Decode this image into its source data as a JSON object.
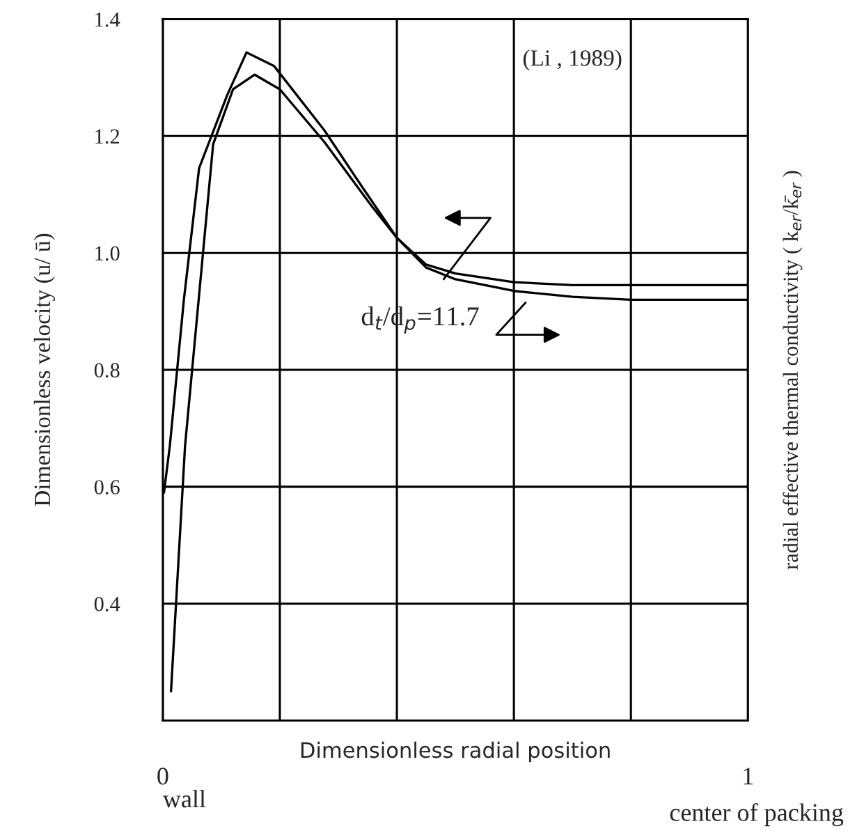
{
  "chart_data": {
    "type": "line",
    "xlabel": "Dimensionless radial position",
    "ylabel": "Dimensionless velocity (u/ ū)",
    "y2label": "radial effective thermal conductivity ( k$_{er}$/k̄$_{er}$ )",
    "xlim": [
      0,
      1
    ],
    "xticks": [
      0,
      {
        "value": 0.2,
        "label": null
      },
      {
        "value": 0.4,
        "label": null
      },
      {
        "value": 0.6,
        "label": null
      },
      {
        "value": 0.8,
        "label": null
      },
      1
    ],
    "ylim": [
      0.2,
      1.4
    ],
    "yticks": [
      0.4,
      0.6,
      0.8,
      {
        "value": 1,
        "label": "1.0"
      },
      1.2,
      1.4
    ],
    "grid": true,
    "marker": "none",
    "line_style": "solid",
    "annotations": [
      "(Li , 1989)",
      "d$_{t}$/d$_{p}$=11.7",
      "wall",
      "center of packing"
    ],
    "series": [
      {
        "color": "#000000",
        "x": [
          0.002,
          0.012,
          0.036,
          0.062,
          0.11,
          0.143,
          0.19,
          0.276,
          0.34,
          0.4,
          0.45,
          0.5,
          0.6,
          0.7,
          0.8,
          1.0
        ],
        "values": [
          0.59,
          0.67,
          0.92,
          1.145,
          1.27,
          1.343,
          1.32,
          1.21,
          1.114,
          1.026,
          0.975,
          0.955,
          0.935,
          0.925,
          0.92,
          0.92
        ]
      },
      {
        "color": "#000000",
        "x": [
          0.014,
          0.038,
          0.086,
          0.12,
          0.157,
          0.2,
          0.276,
          0.357,
          0.4,
          0.45,
          0.5,
          0.6,
          0.7,
          0.8,
          1.0
        ],
        "values": [
          0.25,
          0.67,
          1.186,
          1.28,
          1.305,
          1.28,
          1.19,
          1.08,
          1.026,
          0.98,
          0.965,
          0.95,
          0.945,
          0.945,
          0.945
        ]
      }
    ]
  }
}
